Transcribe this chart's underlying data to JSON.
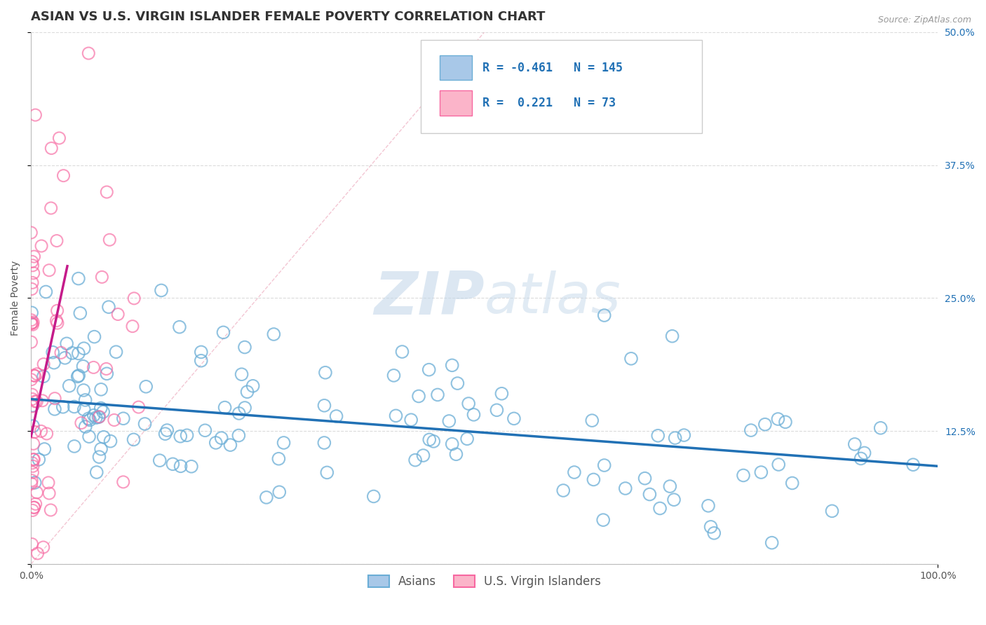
{
  "title": "ASIAN VS U.S. VIRGIN ISLANDER FEMALE POVERTY CORRELATION CHART",
  "source_text": "Source: ZipAtlas.com",
  "ylabel": "Female Poverty",
  "xlim": [
    0,
    1.0
  ],
  "ylim": [
    0,
    0.5
  ],
  "yticks": [
    0,
    0.125,
    0.25,
    0.375,
    0.5
  ],
  "xticks": [
    0,
    1.0
  ],
  "xtick_labels": [
    "0.0%",
    "100.0%"
  ],
  "right_ytick_labels": [
    "",
    "12.5%",
    "25.0%",
    "37.5%",
    "50.0%"
  ],
  "blue_R": -0.461,
  "blue_N": 145,
  "pink_R": 0.221,
  "pink_N": 73,
  "blue_scatter_color": "#a8c8e8",
  "blue_edge_color": "#6baed6",
  "pink_scatter_color": "#fbb4c9",
  "pink_edge_color": "#f768a1",
  "blue_line_color": "#2171b5",
  "pink_line_color": "#c51b8a",
  "diag_line_color": "#f0b8c8",
  "legend_label_blue": "Asians",
  "legend_label_pink": "U.S. Virgin Islanders",
  "background_color": "#ffffff",
  "grid_color": "#cccccc",
  "watermark_color": "#dce8f0",
  "title_color": "#333333",
  "tick_color": "#555555",
  "source_color": "#999999",
  "title_fontsize": 13,
  "axis_label_fontsize": 10,
  "tick_fontsize": 10,
  "legend_fontsize": 12,
  "blue_line_start_y": 0.155,
  "blue_line_end_y": 0.092,
  "pink_line_start_x": 0.0,
  "pink_line_start_y": 0.12,
  "pink_line_end_x": 0.04,
  "pink_line_end_y": 0.28
}
